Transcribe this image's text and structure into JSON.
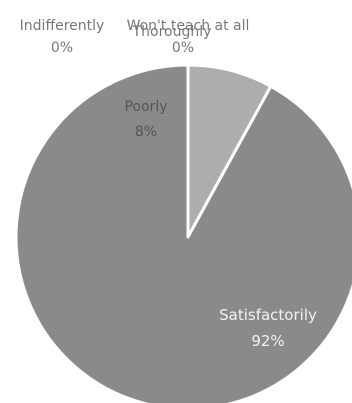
{
  "chart_data": {
    "type": "pie",
    "title": "",
    "slices": [
      {
        "name": "Thoroughly",
        "value": 0,
        "label": "0%",
        "color": "#a9a9a9"
      },
      {
        "name": "Poorly",
        "value": 8,
        "label": "8%",
        "color": "#adadad"
      },
      {
        "name": "Satisfactorily",
        "value": 92,
        "label": "92%",
        "color": "#8a8a8a"
      },
      {
        "name": "Indifferently",
        "value": 0,
        "label": "0%",
        "color": "#9b9b9b"
      },
      {
        "name": "Won't teach at all",
        "value": 0,
        "label": "",
        "color": "#9b9b9b"
      }
    ],
    "slice_border_color": "#ffffff",
    "label_color_outside": "#777777",
    "label_color_inside": "#f2f2f2",
    "label_color_poorly": "#555555",
    "legend": "none"
  }
}
